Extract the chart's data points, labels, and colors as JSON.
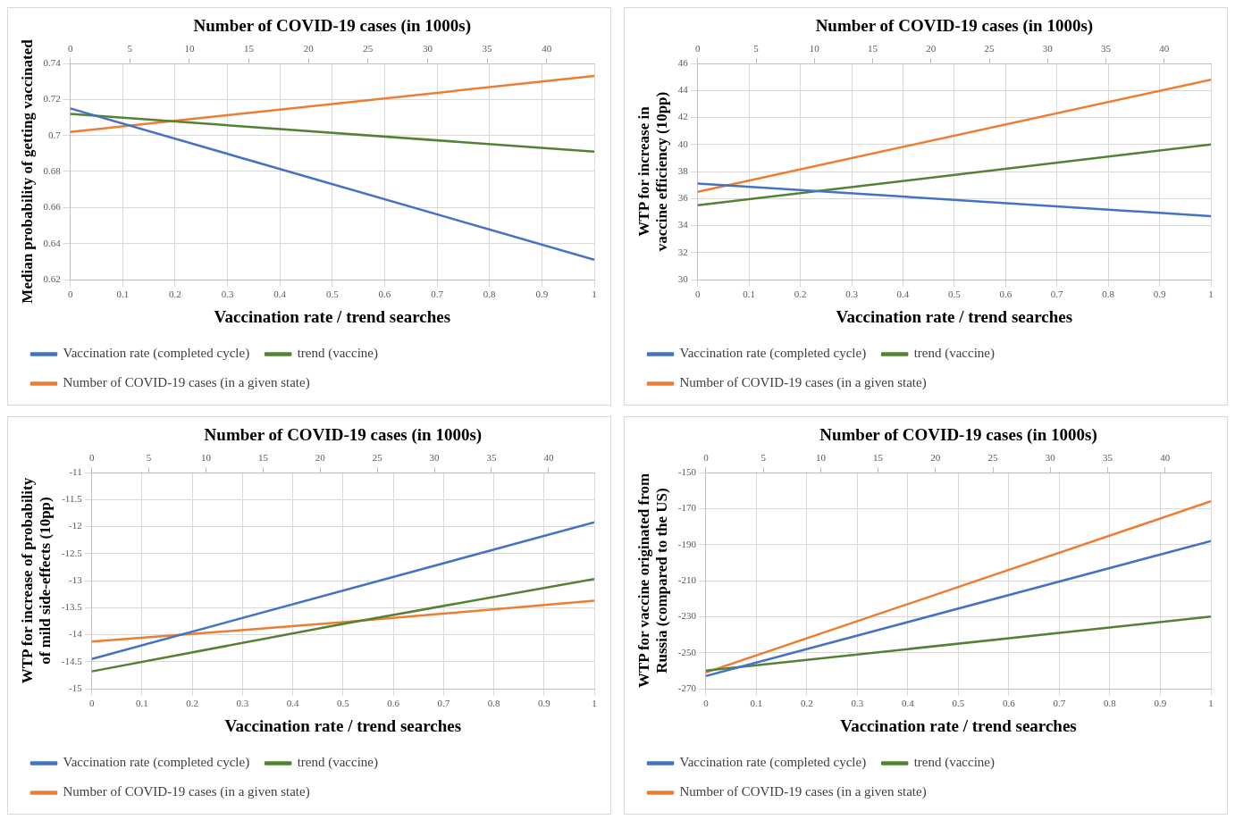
{
  "chart_data": [
    {
      "type": "line",
      "x2label": "Number of COVID-19 cases (in 1000s)",
      "xlabel": "Vaccination rate / trend searches",
      "ylabel": "Median probability of getting vaccinated",
      "xlim": [
        0,
        1
      ],
      "xticks": [
        0,
        0.1,
        0.2,
        0.3,
        0.4,
        0.5,
        0.6,
        0.7,
        0.8,
        0.9,
        1
      ],
      "x2lim": [
        0,
        44
      ],
      "x2ticks": [
        0,
        5,
        10,
        15,
        20,
        25,
        30,
        35,
        40
      ],
      "ylim": [
        0.62,
        0.74
      ],
      "yticks": [
        0.62,
        0.64,
        0.66,
        0.68,
        0.7,
        0.72,
        0.74
      ],
      "grid": true,
      "legend": "bottom",
      "marker": "none",
      "series": [
        {
          "name": "Vaccination rate (completed cycle)",
          "color": "#4472c4",
          "x": [
            0,
            1
          ],
          "values": [
            0.715,
            0.631
          ]
        },
        {
          "name": "trend (vaccine)",
          "color": "#548235",
          "x": [
            0,
            1
          ],
          "values": [
            0.712,
            0.691
          ]
        },
        {
          "name": "Number of COVID-19 cases (in a given state)",
          "color": "#ed7d31",
          "axis": "x2",
          "x": [
            0,
            44
          ],
          "values": [
            0.702,
            0.733
          ]
        }
      ]
    },
    {
      "type": "line",
      "x2label": "Number of COVID-19 cases (in 1000s)",
      "xlabel": "Vaccination rate / trend searches",
      "ylabel": "WTP for increase in vaccine efficiency (10pp)",
      "xlim": [
        0,
        1
      ],
      "xticks": [
        0,
        0.1,
        0.2,
        0.3,
        0.4,
        0.5,
        0.6,
        0.7,
        0.8,
        0.9,
        1
      ],
      "x2lim": [
        0,
        44
      ],
      "x2ticks": [
        0,
        5,
        10,
        15,
        20,
        25,
        30,
        35,
        40
      ],
      "ylim": [
        30,
        46
      ],
      "yticks": [
        30,
        32,
        34,
        36,
        38,
        40,
        42,
        44,
        46
      ],
      "grid": true,
      "legend": "bottom",
      "marker": "none",
      "series": [
        {
          "name": "Vaccination rate (completed cycle)",
          "color": "#4472c4",
          "x": [
            0,
            1
          ],
          "values": [
            37.1,
            34.7
          ]
        },
        {
          "name": "trend (vaccine)",
          "color": "#548235",
          "x": [
            0,
            1
          ],
          "values": [
            35.5,
            40
          ]
        },
        {
          "name": "Number of COVID-19 cases (in a given state)",
          "color": "#ed7d31",
          "axis": "x2",
          "x": [
            0,
            44
          ],
          "values": [
            36.5,
            44.8
          ]
        }
      ]
    },
    {
      "type": "line",
      "x2label": "Number of COVID-19 cases (in 1000s)",
      "xlabel": "Vaccination rate / trend searches",
      "ylabel": "WTP for increase of probability of mild side-effects (10pp)",
      "xlim": [
        0,
        1
      ],
      "xticks": [
        0,
        0.1,
        0.2,
        0.3,
        0.4,
        0.5,
        0.6,
        0.7,
        0.8,
        0.9,
        1
      ],
      "x2lim": [
        0,
        44
      ],
      "x2ticks": [
        0,
        5,
        10,
        15,
        20,
        25,
        30,
        35,
        40
      ],
      "ylim": [
        -15,
        -11
      ],
      "yticks": [
        -15,
        -14.5,
        -14,
        -13.5,
        -13,
        -12.5,
        -12,
        -11.5,
        -11
      ],
      "grid": true,
      "legend": "bottom",
      "marker": "none",
      "series": [
        {
          "name": "Vaccination rate (completed cycle)",
          "color": "#4472c4",
          "x": [
            0,
            1
          ],
          "values": [
            -14.45,
            -11.92
          ]
        },
        {
          "name": "trend (vaccine)",
          "color": "#548235",
          "x": [
            0,
            0.5,
            1
          ],
          "values": [
            -14.68,
            -13.8,
            -12.97
          ]
        },
        {
          "name": "Number of COVID-19 cases (in a given state)",
          "color": "#ed7d31",
          "axis": "x2",
          "x": [
            0,
            22,
            44
          ],
          "values": [
            -14.13,
            -13.77,
            -13.37
          ]
        }
      ]
    },
    {
      "type": "line",
      "x2label": "Number of COVID-19 cases (in 1000s)",
      "xlabel": "Vaccination rate / trend searches",
      "ylabel": "WTP for vaccine originated from Russia (compared to the US)",
      "xlim": [
        0,
        1
      ],
      "xticks": [
        0,
        0.1,
        0.2,
        0.3,
        0.4,
        0.5,
        0.6,
        0.7,
        0.8,
        0.9,
        1
      ],
      "x2lim": [
        0,
        44
      ],
      "x2ticks": [
        0,
        5,
        10,
        15,
        20,
        25,
        30,
        35,
        40
      ],
      "ylim": [
        -270,
        -150
      ],
      "yticks": [
        -270,
        -250,
        -230,
        -210,
        -190,
        -170,
        -150
      ],
      "grid": true,
      "legend": "bottom",
      "marker": "none",
      "series": [
        {
          "name": "Vaccination rate (completed cycle)",
          "color": "#4472c4",
          "x": [
            0,
            1
          ],
          "values": [
            -263,
            -188
          ]
        },
        {
          "name": "trend (vaccine)",
          "color": "#548235",
          "x": [
            0,
            1
          ],
          "values": [
            -260,
            -230
          ]
        },
        {
          "name": "Number of COVID-19 cases (in a given state)",
          "color": "#ed7d31",
          "axis": "x2",
          "x": [
            0,
            44
          ],
          "values": [
            -261,
            -166
          ]
        }
      ]
    }
  ]
}
